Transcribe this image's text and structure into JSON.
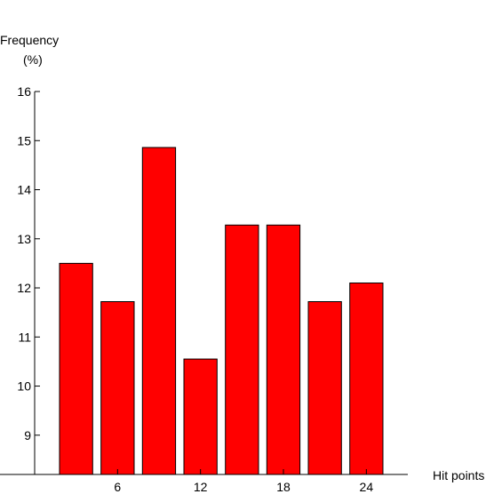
{
  "chart_data": {
    "type": "bar",
    "title": "",
    "ylabel": "Frequency",
    "ylabel_unit": "(%)",
    "xlabel": "Hit points",
    "ylim": [
      8.2,
      16
    ],
    "y_ticks": [
      9,
      10,
      11,
      12,
      13,
      14,
      15,
      16
    ],
    "x_ticks": [
      6,
      12,
      18,
      24
    ],
    "x_range": [
      0,
      27
    ],
    "bar_width": 2.4,
    "bar_color": "#ff0000",
    "x": [
      3,
      6,
      9,
      12,
      15,
      18,
      21,
      24
    ],
    "values": [
      12.5,
      11.72,
      14.86,
      10.55,
      13.28,
      13.28,
      11.72,
      12.1
    ],
    "grid": false,
    "legend": "none"
  }
}
